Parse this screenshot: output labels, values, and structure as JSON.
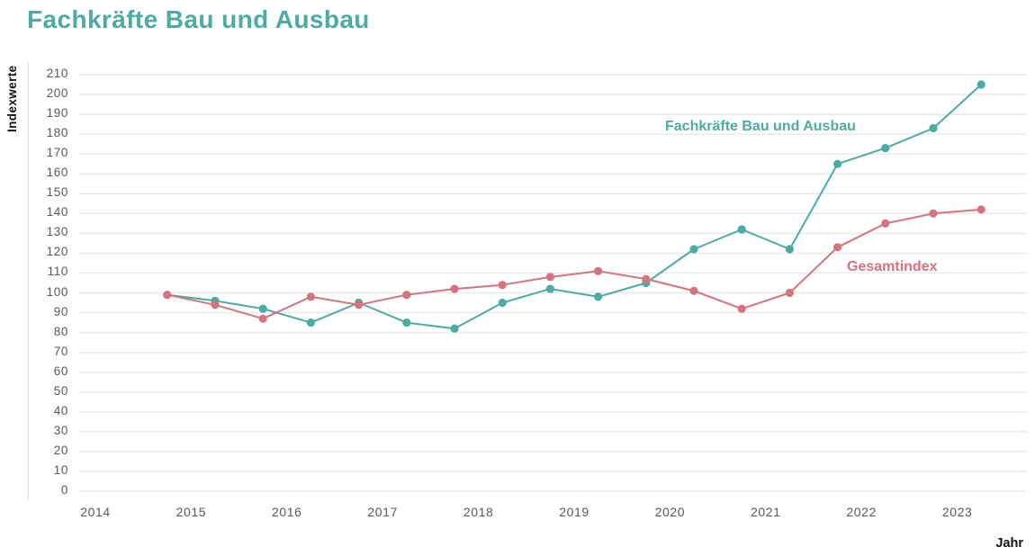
{
  "title": "Fachkräfte Bau und Ausbau",
  "chart_data": {
    "type": "line",
    "title": "Fachkräfte Bau und Ausbau",
    "xlabel": "Jahr",
    "ylabel": "Indexwerte",
    "grid": true,
    "legend_position": "inline-labels-on-plot",
    "ylim": [
      0,
      210
    ],
    "y_ticks": [
      0,
      10,
      20,
      30,
      40,
      50,
      60,
      70,
      80,
      90,
      100,
      110,
      120,
      130,
      140,
      150,
      160,
      170,
      180,
      190,
      200,
      210
    ],
    "x_tick_labels": [
      "2014",
      "2015",
      "2016",
      "2017",
      "2018",
      "2019",
      "2020",
      "2021",
      "2022",
      "2023"
    ],
    "x": [
      2014.75,
      2015.25,
      2015.75,
      2016.25,
      2016.75,
      2017.25,
      2017.75,
      2018.25,
      2018.75,
      2019.25,
      2019.75,
      2020.25,
      2020.75,
      2021.25,
      2021.75,
      2022.25,
      2022.75,
      2023.25
    ],
    "series": [
      {
        "name": "Fachkräfte Bau und Ausbau",
        "color": "#4caba4",
        "values": [
          99,
          96,
          92,
          85,
          95,
          85,
          82,
          95,
          102,
          98,
          105,
          122,
          132,
          122,
          165,
          173,
          183,
          205
        ]
      },
      {
        "name": "Gesamtindex",
        "color": "#d5747e",
        "values": [
          99,
          94,
          87,
          98,
          94,
          99,
          102,
          104,
          108,
          111,
          107,
          101,
          92,
          100,
          123,
          135,
          140,
          142
        ]
      }
    ],
    "colors": {
      "grid": "#e9e9e9",
      "axis_line": "#e0e0e0",
      "tick_text": "#595959"
    }
  }
}
